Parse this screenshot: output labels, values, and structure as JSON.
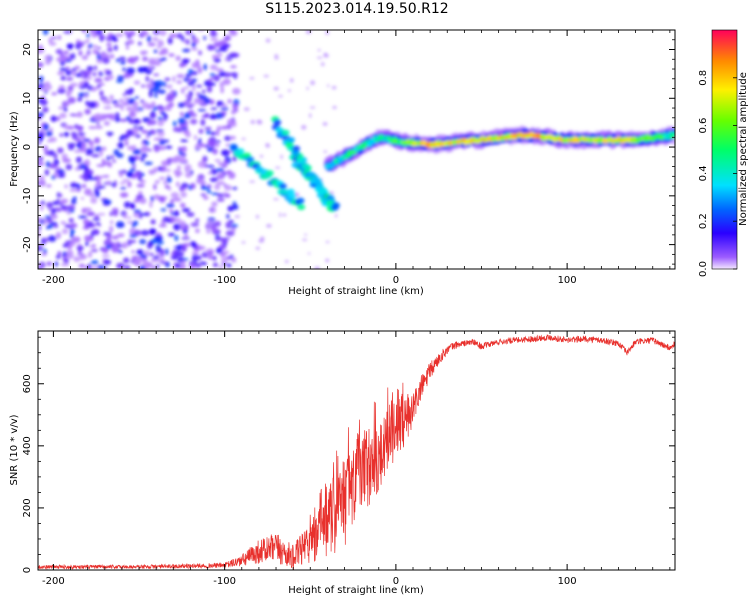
{
  "page_title": "S115.2023.014.19.50.R12",
  "colors": {
    "snr_line": "#e8302c",
    "axis": "#000000",
    "hot_band": "#ff2a2a"
  },
  "chart_data": [
    {
      "type": "heatmap",
      "title": "",
      "xlabel": "Height of straight line (km)",
      "ylabel": "Frequency (Hz)",
      "xlim": [
        -209,
        163
      ],
      "ylim": [
        -25,
        24
      ],
      "x_ticks": [
        -200,
        -100,
        0,
        100
      ],
      "y_ticks": [
        -20,
        -10,
        0,
        10,
        20
      ],
      "colorbar": {
        "label": "Normalized spectral amplitude",
        "range": [
          0,
          1
        ],
        "ticks": [
          "0.0",
          "0.2",
          "0.4",
          "0.6",
          "0.8"
        ],
        "tick_values": [
          0,
          0.2,
          0.4,
          0.6,
          0.8
        ]
      },
      "features": {
        "noise_region_x": [
          -209,
          -93
        ],
        "streak_1": {
          "x": [
            -95,
            -55
          ],
          "y": [
            0,
            -12
          ]
        },
        "streak_2": {
          "x": [
            -70,
            -38
          ],
          "y": [
            5,
            -12
          ]
        },
        "streak_3": {
          "x": [
            -60,
            -35
          ],
          "y": [
            -2,
            -12
          ]
        },
        "band": [
          {
            "x": -40,
            "y": -4,
            "amp": 0.4
          },
          {
            "x": -25,
            "y": -1,
            "amp": 0.6
          },
          {
            "x": -10,
            "y": 2,
            "amp": 0.5
          },
          {
            "x": 5,
            "y": 1,
            "amp": 0.7
          },
          {
            "x": 20,
            "y": 0.5,
            "amp": 0.9
          },
          {
            "x": 50,
            "y": 1.5,
            "amp": 0.85
          },
          {
            "x": 75,
            "y": 2.5,
            "amp": 0.9
          },
          {
            "x": 100,
            "y": 1.5,
            "amp": 0.85
          },
          {
            "x": 140,
            "y": 1.5,
            "amp": 0.8
          },
          {
            "x": 163,
            "y": 2.5,
            "amp": 0.5
          }
        ]
      }
    },
    {
      "type": "line",
      "title": "",
      "xlabel": "Height of straight line (km)",
      "ylabel": "SNR (10 * v/v)",
      "xlim": [
        -209,
        163
      ],
      "ylim": [
        0,
        770
      ],
      "x_ticks": [
        -200,
        -100,
        0,
        100
      ],
      "y_ticks": [
        0,
        200,
        400,
        600
      ],
      "series": [
        {
          "x": [
            -209,
            -150,
            -100,
            -90,
            -80,
            -70,
            -60,
            -50,
            -40,
            -30,
            -25,
            -20,
            -15,
            -10,
            -5,
            0,
            5,
            10,
            15,
            20,
            25,
            30,
            35,
            40,
            45,
            50,
            60,
            70,
            80,
            90,
            100,
            110,
            120,
            130,
            135,
            140,
            150,
            160,
            163
          ],
          "y": [
            10,
            10,
            15,
            30,
            60,
            70,
            40,
            90,
            150,
            220,
            300,
            320,
            340,
            360,
            420,
            450,
            480,
            520,
            590,
            640,
            680,
            710,
            725,
            730,
            735,
            720,
            735,
            740,
            745,
            750,
            740,
            745,
            740,
            730,
            700,
            735,
            740,
            715,
            730
          ],
          "amplitude": [
            6,
            6,
            8,
            20,
            40,
            50,
            40,
            70,
            110,
            150,
            150,
            130,
            130,
            120,
            110,
            100,
            80,
            60,
            40,
            30,
            20,
            15,
            12,
            10,
            10,
            10,
            10,
            10,
            10,
            10,
            10,
            10,
            10,
            10,
            10,
            10,
            10,
            10,
            10
          ]
        }
      ]
    }
  ]
}
